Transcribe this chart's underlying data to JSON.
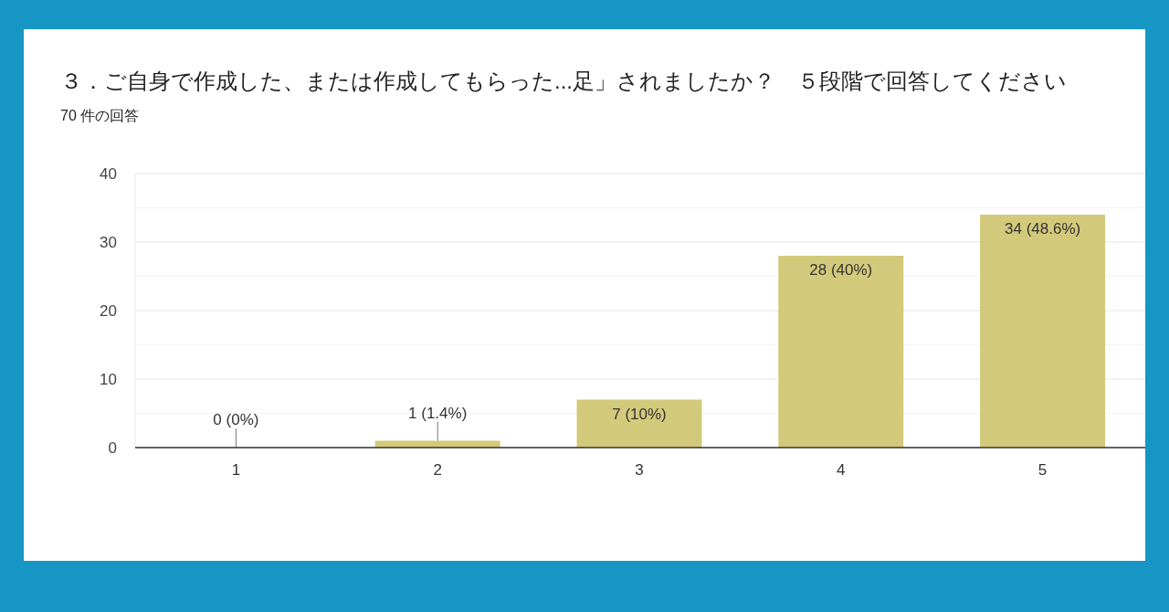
{
  "chart_data": {
    "type": "bar",
    "title": "３．ご自身で作成した、または作成してもらった...足」されましたか？　５段階で回答してください",
    "subtitle": "70 件の回答",
    "categories": [
      "1",
      "2",
      "3",
      "4",
      "5"
    ],
    "values": [
      0,
      1,
      7,
      28,
      34
    ],
    "value_labels": [
      "0 (0%)",
      "1 (1.4%)",
      "7 (10%)",
      "28 (40%)",
      "34 (48.6%)"
    ],
    "color": "#d3c97a",
    "ylim": [
      0,
      40
    ],
    "yticks": [
      0,
      {
        "value": 5,
        "label": null
      },
      10,
      {
        "value": 15,
        "label": null
      },
      20,
      {
        "value": 25,
        "label": null
      },
      30,
      {
        "value": 35,
        "label": null
      },
      40
    ],
    "grid": "y"
  }
}
